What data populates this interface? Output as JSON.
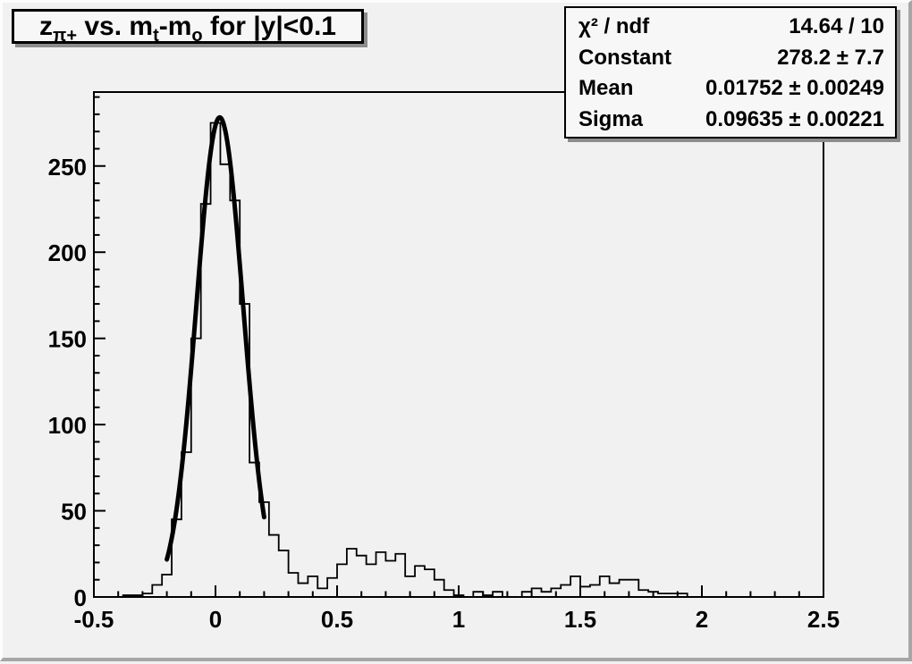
{
  "title": {
    "plain": "z_π+ vs. m_t-m_o for |y|<0.1",
    "segments": [
      {
        "text": "z"
      },
      {
        "text": "π+",
        "sub": true
      },
      {
        "text": " vs. m"
      },
      {
        "text": "t",
        "sub": true
      },
      {
        "text": "-m"
      },
      {
        "text": "o",
        "sub": true
      },
      {
        "text": " for |y|<0.1"
      }
    ]
  },
  "stats": {
    "rows": [
      {
        "label": "χ² / ndf",
        "value": "14.64 / 10"
      },
      {
        "label": "Constant",
        "value": "278.2 ± 7.7"
      },
      {
        "label": "Mean",
        "value": "0.01752 ± 0.00249"
      },
      {
        "label": "Sigma",
        "value": "0.09635 ± 0.00221"
      }
    ]
  },
  "colors": {
    "canvas_bg": "#f1f1f1",
    "pave_bg": "#f7f7f7",
    "line": "#000000",
    "bevel_light": "#fcfcfc",
    "bevel_dark": "#a6a6a6",
    "pave_shadow": "#8c8c8c"
  },
  "chart_data": {
    "type": "bar",
    "title": "z_π+ vs. m_t-m_o for |y|<0.1",
    "xlabel": "",
    "ylabel": "",
    "xlim": [
      -0.5,
      2.5
    ],
    "ylim": [
      0,
      292.9
    ],
    "grid": false,
    "bin_start": -0.5,
    "bin_width": 0.04,
    "values": [
      0,
      0,
      0,
      1,
      1,
      2,
      7,
      13,
      45,
      84,
      150,
      228,
      275,
      251,
      230,
      170,
      78,
      55,
      36,
      27,
      14,
      8,
      12,
      5,
      11,
      19,
      28,
      24,
      19,
      26,
      21,
      25,
      12,
      18,
      16,
      10,
      4,
      1,
      0,
      3,
      1,
      3,
      0,
      0,
      3,
      5,
      3,
      5,
      7,
      12,
      6,
      7,
      12,
      8,
      10,
      10,
      4,
      3,
      2,
      2,
      2,
      0,
      0,
      0,
      0,
      0,
      0,
      0,
      0,
      0,
      0,
      0,
      0,
      0,
      0
    ],
    "fit": {
      "type": "gaussian",
      "constant": 278.2,
      "mean": 0.01752,
      "sigma": 0.09635,
      "draw_range": [
        -0.2,
        0.2
      ]
    },
    "x_ticks": {
      "major_values": [
        -0.5,
        0,
        0.5,
        1,
        1.5,
        2,
        2.5
      ],
      "major_labels": [
        "-0.5",
        "0",
        "0.5",
        "1",
        "1.5",
        "2",
        "2.5"
      ],
      "minor_step": 0.1
    },
    "y_ticks": {
      "major_values": [
        0,
        50,
        100,
        150,
        200,
        250
      ],
      "major_labels": [
        "0",
        "50",
        "100",
        "150",
        "200",
        "250"
      ],
      "minor_step": 10
    }
  }
}
